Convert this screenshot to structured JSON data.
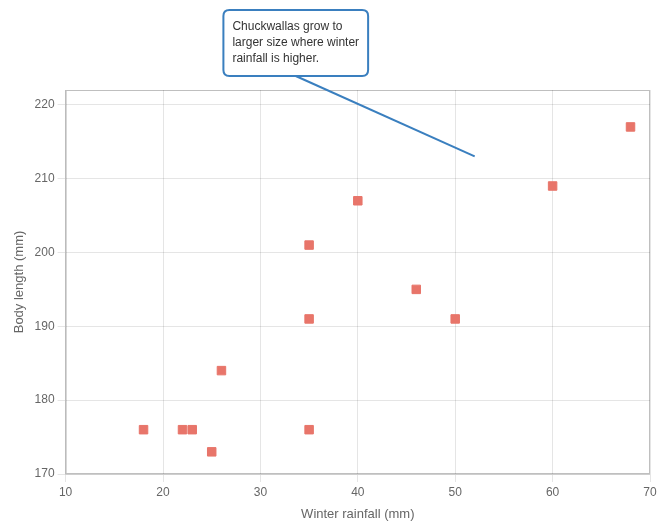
{
  "chart_data": {
    "type": "scatter",
    "xlabel": "Winter rainfall (mm)",
    "ylabel": "Body length (mm)",
    "x": [
      18,
      22,
      23,
      25,
      26,
      35,
      35,
      35,
      40,
      46,
      50,
      60,
      68
    ],
    "values": [
      176,
      176,
      176,
      173,
      184,
      201,
      191,
      176,
      207,
      195,
      191,
      209,
      217
    ],
    "color": "#E8756A",
    "marker": "square",
    "xlim": [
      10,
      70
    ],
    "ylim": [
      170,
      222
    ],
    "xticks": [
      10,
      20,
      30,
      40,
      50,
      60,
      70
    ],
    "yticks": [
      170,
      180,
      190,
      200,
      210,
      220
    ],
    "grid": true,
    "annotations": [
      {
        "text": "Chuckwallas grow to\nlarger size where winter\nrainfall is higher.",
        "x": 52,
        "y": 213
      }
    ]
  }
}
